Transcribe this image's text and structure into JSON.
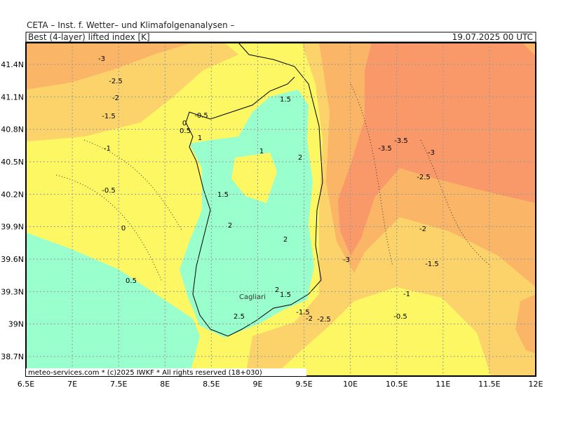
{
  "header": {
    "institute": "CETA  –  Inst. f. Wetter–  und  Klimafolgenanalysen  –",
    "parameter": "Best (4-layer) lifted index [K]",
    "valid_time": "19.07.2025 00 UTC"
  },
  "axes": {
    "longitude": [
      "6.5E",
      "7E",
      "7.5E",
      "8E",
      "8.5E",
      "9E",
      "9.5E",
      "10E",
      "10.5E",
      "11E",
      "11.5E",
      "12E"
    ],
    "latitude": [
      "41.4N",
      "41.1N",
      "40.8N",
      "40.5N",
      "40.2N",
      "39.9N",
      "39.6N",
      "39.3N",
      "39N",
      "38.7N"
    ]
  },
  "contour_labels": [
    "-3",
    "-2.5",
    "-2",
    "-1.5",
    "-1",
    "-0.5",
    "0",
    "0.5",
    "-0.5",
    "0",
    "0.5",
    "1",
    "1.5",
    "1",
    "2",
    "1.5",
    "2",
    "2",
    "-3.5",
    "-3.5",
    "-3",
    "-2.5",
    "-2",
    "-3",
    "-1.5",
    "-1",
    "-0.5",
    "2",
    "1.5",
    "2.5",
    "-1.5",
    "-2",
    "-2.5"
  ],
  "places": [
    "Cagliari"
  ],
  "footer": "meteo-services.com * (c)2025 IWKF * All rights reserved (18+030)"
}
